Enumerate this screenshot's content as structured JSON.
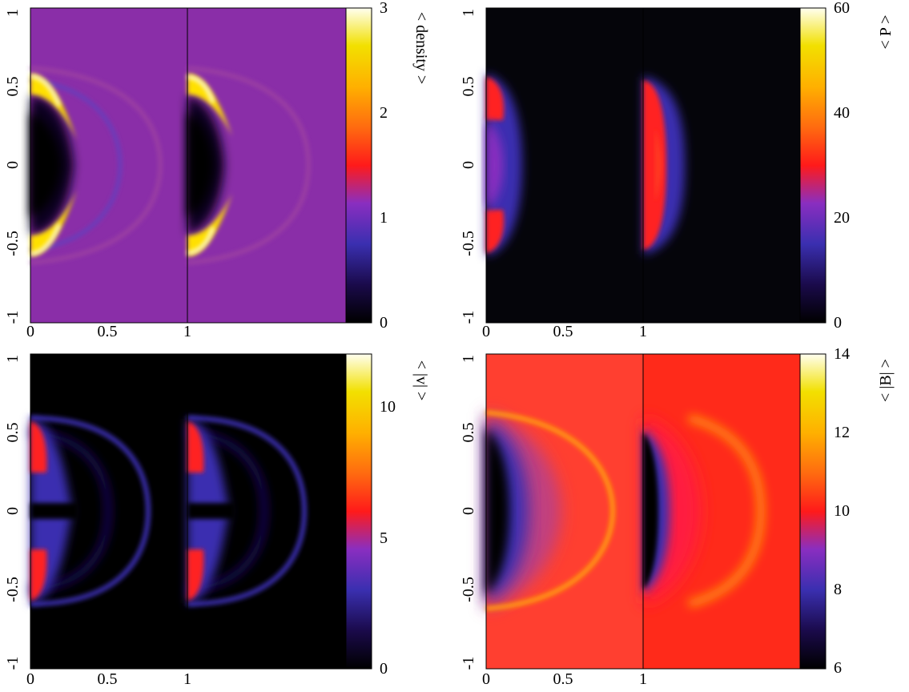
{
  "chart_data": [
    {
      "type": "heatmap",
      "title": "",
      "colorbar_label": "< density >",
      "colorbar_range": [
        0,
        3
      ],
      "colorbar_ticks": [
        "0",
        "1",
        "2",
        "3"
      ],
      "background_value": 1.0,
      "x_ticks": [
        "0",
        "0.5",
        "1"
      ],
      "y_ticks": [
        "-1",
        "-0.5",
        "0",
        "0.5",
        "1"
      ],
      "xlim": [
        0,
        1
      ],
      "ylim": [
        -1,
        1
      ],
      "panels": 2
    },
    {
      "type": "heatmap",
      "title": "",
      "colorbar_label": "< P >",
      "colorbar_range": [
        0,
        60
      ],
      "colorbar_ticks": [
        "0",
        "20",
        "40",
        "60"
      ],
      "background_value": 0,
      "x_ticks": [
        "0",
        "0.5",
        "1"
      ],
      "y_ticks": [
        "-1",
        "-0.5",
        "0",
        "0.5",
        "1"
      ],
      "xlim": [
        0,
        1
      ],
      "ylim": [
        -1,
        1
      ],
      "panels": 2
    },
    {
      "type": "heatmap",
      "title": "",
      "colorbar_label": "< |v| >",
      "colorbar_range": [
        0,
        12
      ],
      "colorbar_ticks": [
        "0",
        "5",
        "10"
      ],
      "background_value": 0,
      "x_ticks": [
        "0",
        "0.5",
        "1"
      ],
      "y_ticks": [
        "-1",
        "-0.5",
        "0",
        "0.5",
        "1"
      ],
      "xlim": [
        0,
        1
      ],
      "ylim": [
        -1,
        1
      ],
      "panels": 2
    },
    {
      "type": "heatmap",
      "title": "",
      "colorbar_label": "< |B| >",
      "colorbar_range": [
        6,
        14
      ],
      "colorbar_ticks": [
        "6",
        "8",
        "10",
        "12",
        "14"
      ],
      "background_value": 10,
      "x_ticks": [
        "0",
        "0.5",
        "1"
      ],
      "y_ticks": [
        "-1",
        "-0.5",
        "0",
        "0.5",
        "1"
      ],
      "xlim": [
        0,
        1
      ],
      "ylim": [
        -1,
        1
      ],
      "panels": 2
    }
  ],
  "colormap": [
    "#000000",
    "#1a0a4a",
    "#3a2fb0",
    "#8a2ec0",
    "#c0308a",
    "#ff1a1a",
    "#ff6a10",
    "#ffb000",
    "#f2e000",
    "#fffff0"
  ]
}
